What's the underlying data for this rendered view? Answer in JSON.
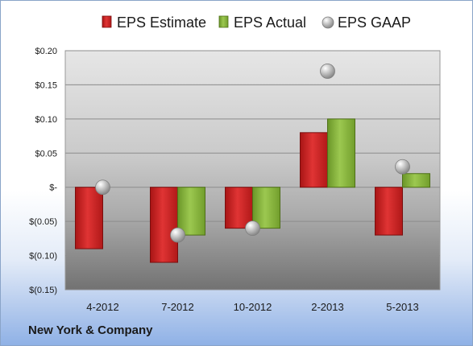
{
  "company": "New York & Company",
  "chart_data": {
    "type": "bar",
    "categories": [
      "4-2012",
      "7-2012",
      "10-2012",
      "2-2013",
      "5-2013"
    ],
    "series": [
      {
        "name": "EPS Estimate",
        "kind": "bar",
        "color": "#cc1f1f",
        "values": [
          -0.09,
          -0.11,
          -0.06,
          0.08,
          -0.07
        ]
      },
      {
        "name": "EPS Actual",
        "kind": "bar",
        "color": "#7faa32",
        "values": [
          null,
          -0.07,
          -0.06,
          0.1,
          0.02
        ]
      },
      {
        "name": "EPS GAAP",
        "kind": "marker",
        "color": "#a8a8a8",
        "values": [
          0.0,
          -0.07,
          -0.06,
          0.17,
          0.03
        ]
      }
    ],
    "y_ticks": [
      {
        "value": 0.2,
        "label": "$0.20"
      },
      {
        "value": 0.15,
        "label": "$0.15"
      },
      {
        "value": 0.1,
        "label": "$0.10"
      },
      {
        "value": 0.05,
        "label": "$0.05"
      },
      {
        "value": 0.0,
        "label": "$-"
      },
      {
        "value": -0.05,
        "label": "$(0.05)"
      },
      {
        "value": -0.1,
        "label": "$(0.10)"
      },
      {
        "value": -0.15,
        "label": "$(0.15)"
      }
    ],
    "ylim": [
      -0.15,
      0.2
    ],
    "grid": true,
    "legend": "top"
  }
}
